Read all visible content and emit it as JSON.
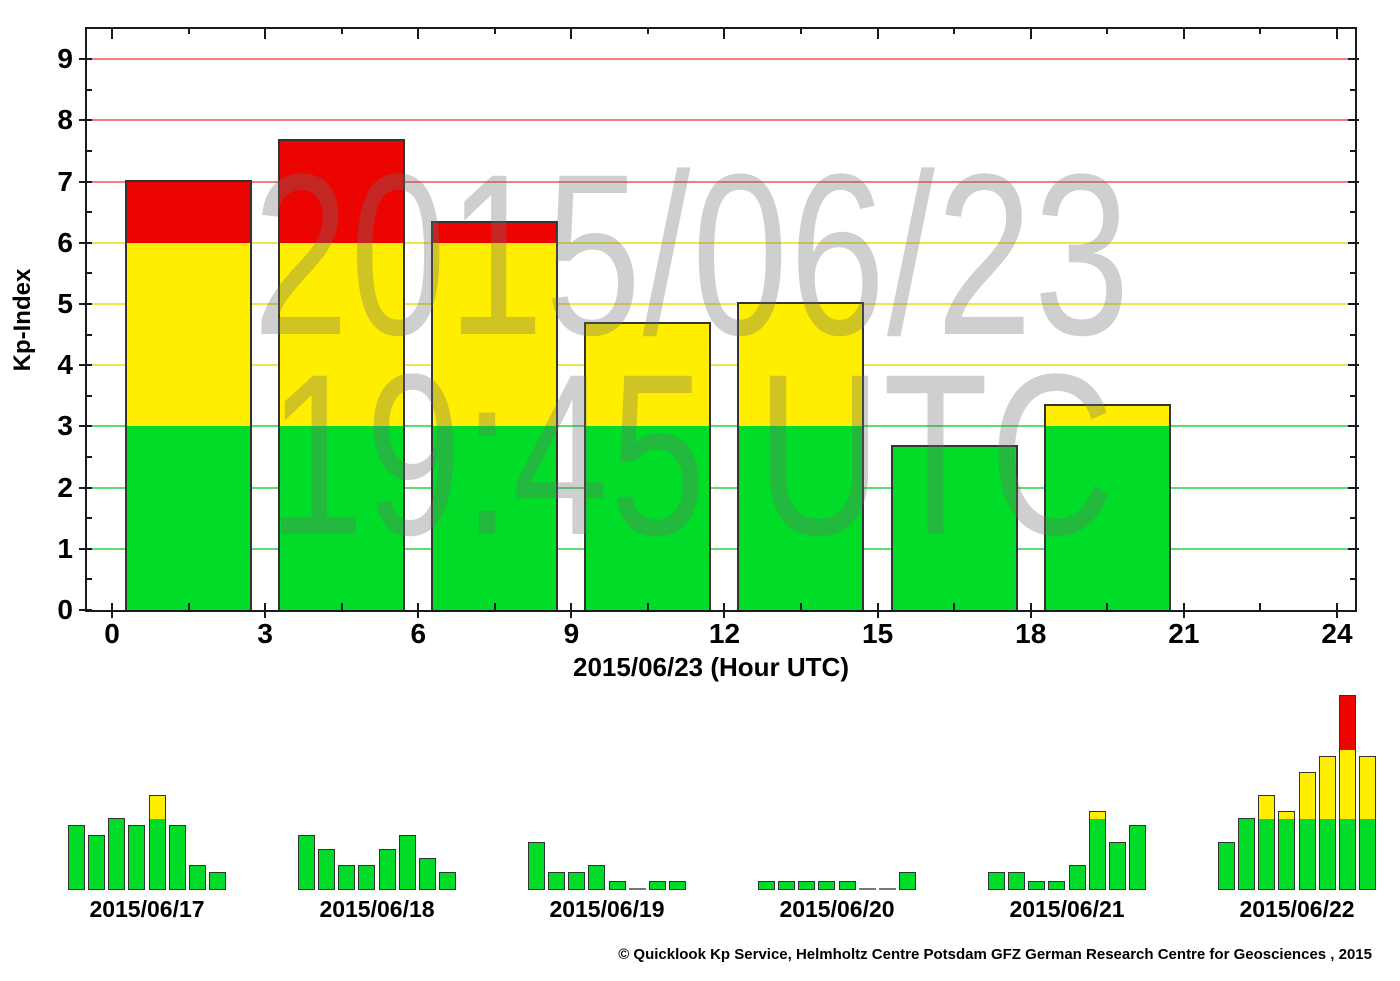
{
  "footer": {
    "copyright": "© Quicklook Kp Service, Helmholtz Centre Potsdam GFZ German Research Centre for Geosciences , 2015"
  },
  "colors": {
    "bar_green": "#00DC28",
    "bar_yellow": "#FFEE00",
    "bar_red": "#EC0400",
    "grid_green": "#5FDC71",
    "grid_yellow": "#E9E94F",
    "grid_red": "#F08080",
    "bar_border": "#333333",
    "axis": "#1A1A1A",
    "watermark": "#6E6E6E",
    "watermark_opacity": 0.32,
    "zero_bar": "#777777"
  },
  "kp_color_rule": {
    "green_max": 3,
    "yellow_max": 6,
    "red_above": 6
  },
  "chart_data": [
    {
      "id": "main",
      "type": "bar",
      "title": "",
      "watermark": [
        "2015/06/23",
        "19:45 UTC"
      ],
      "xlabel": "2015/06/23 (Hour UTC)",
      "ylabel": "Kp-Index",
      "categories": [
        "00-03",
        "03-06",
        "06-09",
        "09-12",
        "12-15",
        "15-18",
        "18-21",
        "21-24"
      ],
      "x_slot_starts": [
        0,
        3,
        6,
        9,
        12,
        15,
        18,
        21
      ],
      "values": [
        7.0,
        7.67,
        6.33,
        4.67,
        5.0,
        2.67,
        3.33,
        null
      ],
      "xlim": [
        0,
        24
      ],
      "ylim": [
        0,
        9.5
      ],
      "x_ticks": [
        0,
        3,
        6,
        9,
        12,
        15,
        18,
        21,
        24
      ],
      "y_ticks": [
        0,
        1,
        2,
        3,
        4,
        5,
        6,
        7,
        8,
        9
      ],
      "grid": "horizontal colored lines at Kp 1-9 (1-3 green, 4-6 yellow, 7-9 red)",
      "legend": "stacked color bands: green Kp 0-3, yellow Kp 3-6, red Kp above 6"
    },
    {
      "id": "hist-1",
      "type": "bar",
      "label": "2015/06/17",
      "values": [
        2.7,
        2.3,
        3.0,
        2.7,
        4.0,
        2.7,
        1.0,
        0.7
      ]
    },
    {
      "id": "hist-2",
      "type": "bar",
      "label": "2015/06/18",
      "values": [
        2.3,
        1.7,
        1.0,
        1.0,
        1.7,
        2.3,
        1.3,
        0.7
      ]
    },
    {
      "id": "hist-3",
      "type": "bar",
      "label": "2015/06/19",
      "values": [
        2.0,
        0.7,
        0.7,
        1.0,
        0.3,
        0.0,
        0.3,
        0.3
      ]
    },
    {
      "id": "hist-4",
      "type": "bar",
      "label": "2015/06/20",
      "values": [
        0.3,
        0.3,
        0.3,
        0.3,
        0.3,
        0.0,
        0.0,
        0.7
      ]
    },
    {
      "id": "hist-5",
      "type": "bar",
      "label": "2015/06/21",
      "values": [
        0.7,
        0.7,
        0.3,
        0.3,
        1.0,
        3.3,
        2.0,
        2.7
      ]
    },
    {
      "id": "hist-6",
      "type": "bar",
      "label": "2015/06/22",
      "values": [
        2.0,
        3.0,
        4.0,
        3.3,
        5.0,
        5.7,
        8.3,
        5.7
      ]
    }
  ]
}
